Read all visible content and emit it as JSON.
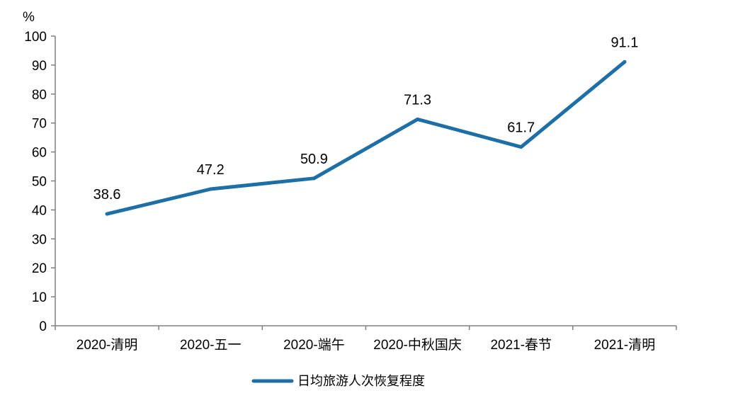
{
  "chart_data": {
    "type": "line",
    "title": "",
    "xlabel": "",
    "ylabel": "%",
    "categories": [
      "2020-清明",
      "2020-五一",
      "2020-端午",
      "2020-中秋国庆",
      "2021-春节",
      "2021-清明"
    ],
    "series": [
      {
        "name": "日均旅游人次恢复程度",
        "values": [
          38.6,
          47.2,
          50.9,
          71.3,
          61.7,
          91.1
        ],
        "labels": [
          "38.6",
          "47.2",
          "50.9",
          "71.3",
          "61.7",
          "91.1"
        ],
        "color": "#1f6fa7"
      }
    ],
    "ylim": [
      0,
      100
    ],
    "yticks": [
      0,
      10,
      20,
      30,
      40,
      50,
      60,
      70,
      80,
      90,
      100
    ],
    "ytick_labels": [
      "0",
      "10",
      "20",
      "30",
      "40",
      "50",
      "60",
      "70",
      "80",
      "90",
      "100"
    ],
    "grid": false,
    "legend": "bottom"
  }
}
